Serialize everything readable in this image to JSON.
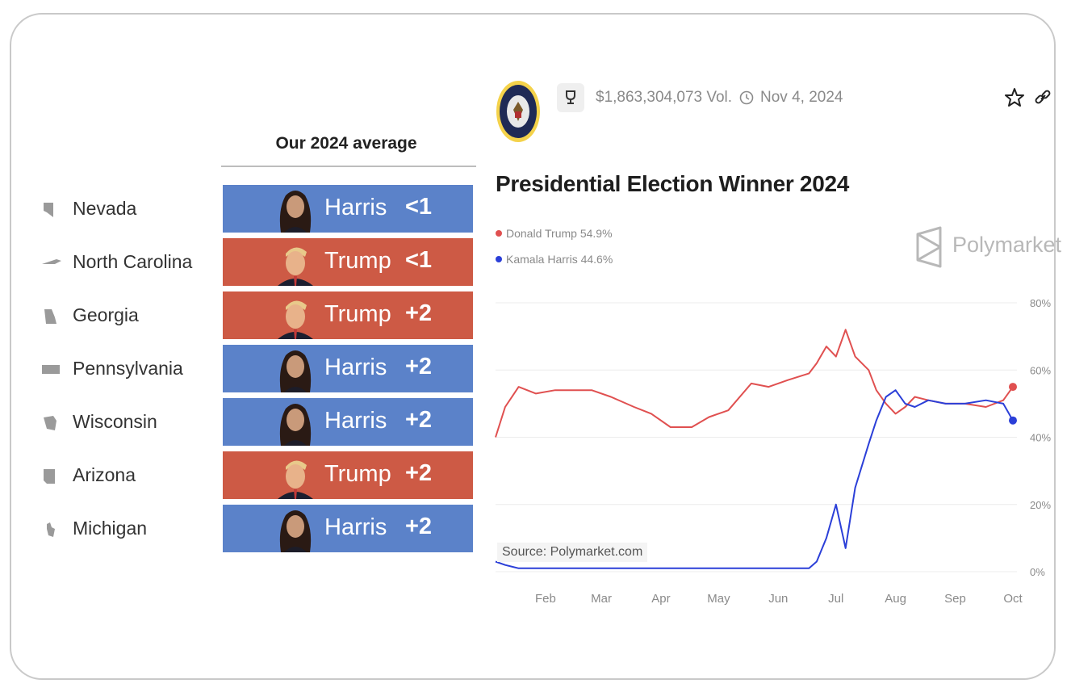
{
  "table": {
    "title": "Our 2024 average",
    "rows": [
      {
        "state": "Nevada",
        "candidate": "Harris",
        "margin": "<1"
      },
      {
        "state": "North Carolina",
        "candidate": "Trump",
        "margin": "<1"
      },
      {
        "state": "Georgia",
        "candidate": "Trump",
        "margin": "+2"
      },
      {
        "state": "Pennsylvania",
        "candidate": "Harris",
        "margin": "+2"
      },
      {
        "state": "Wisconsin",
        "candidate": "Harris",
        "margin": "+2"
      },
      {
        "state": "Arizona",
        "candidate": "Trump",
        "margin": "+2"
      },
      {
        "state": "Michigan",
        "candidate": "Harris",
        "margin": "+2"
      }
    ],
    "colors": {
      "harris": "#5b82c9",
      "trump": "#cd5a45"
    }
  },
  "market": {
    "volume": "$1,863,304,073 Vol.",
    "date": "Nov 4, 2024",
    "title": "Presidential Election Winner 2024",
    "legend": [
      {
        "label": "Donald Trump 54.9%",
        "color": "#e05050"
      },
      {
        "label": "Kamala Harris 44.6%",
        "color": "#2b3fd8"
      }
    ],
    "brand": "Polymarket",
    "source": "Source: Polymarket.com"
  },
  "chart_data": {
    "type": "line",
    "x": [
      "Jan 20",
      "Jan 25",
      "Feb 1",
      "Feb 10",
      "Feb 20",
      "Mar 1",
      "Mar 10",
      "Mar 20",
      "Apr 1",
      "Apr 10",
      "Apr 20",
      "May 1",
      "May 10",
      "May 20",
      "Jun 1",
      "Jun 10",
      "Jun 20",
      "Jul 1",
      "Jul 5",
      "Jul 10",
      "Jul 15",
      "Jul 20",
      "Jul 25",
      "Aug 1",
      "Aug 5",
      "Aug 10",
      "Aug 15",
      "Aug 20",
      "Aug 25",
      "Sep 1",
      "Sep 10",
      "Sep 20",
      "Oct 1",
      "Oct 10",
      "Oct 15"
    ],
    "series": [
      {
        "name": "Donald Trump 54.9%",
        "color": "#e05050",
        "values": [
          40,
          49,
          55,
          53,
          54,
          54,
          54,
          52,
          49,
          47,
          43,
          43,
          46,
          48,
          56,
          55,
          57,
          59,
          62,
          67,
          64,
          72,
          64,
          60,
          54,
          50,
          47,
          49,
          52,
          51,
          50,
          50,
          49,
          51,
          55
        ]
      },
      {
        "name": "Kamala Harris 44.6%",
        "color": "#2b3fd8",
        "values": [
          3,
          2,
          1,
          1,
          1,
          1,
          1,
          1,
          1,
          1,
          1,
          1,
          1,
          1,
          1,
          1,
          1,
          1,
          3,
          10,
          20,
          7,
          25,
          38,
          45,
          52,
          54,
          50,
          49,
          51,
          50,
          50,
          51,
          50,
          45
        ]
      }
    ],
    "xticks": [
      "Feb",
      "Mar",
      "Apr",
      "May",
      "Jun",
      "Jul",
      "Aug",
      "Sep",
      "Oct"
    ],
    "yticks": [
      "0%",
      "20%",
      "40%",
      "60%",
      "80%"
    ],
    "ylim": [
      0,
      80
    ],
    "grid": true,
    "legend": "top-left"
  }
}
